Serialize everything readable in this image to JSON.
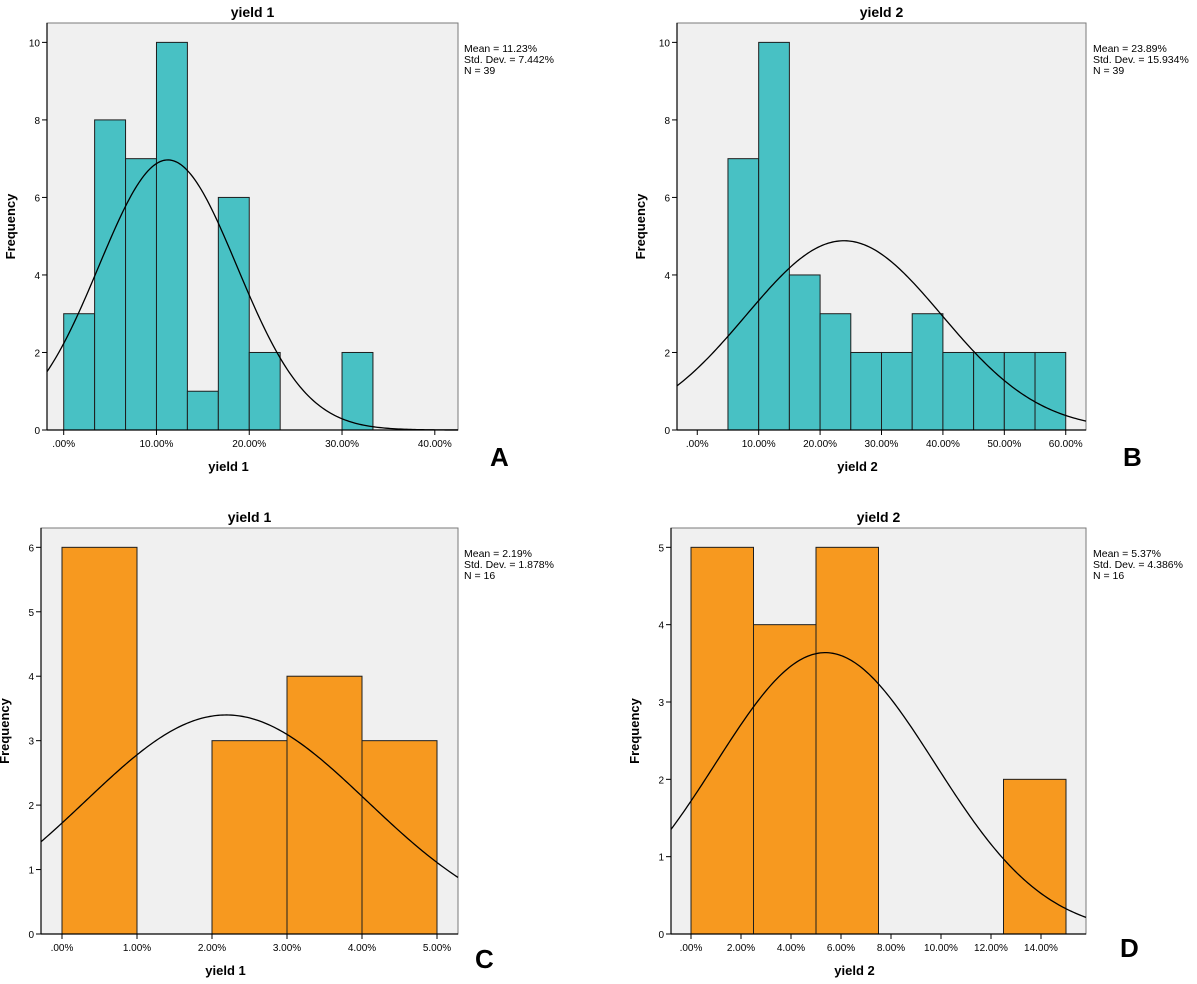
{
  "figure": {
    "description": "Four histograms with fitted normal curves"
  },
  "chart_data": [
    {
      "id": "A",
      "type": "bar",
      "subtype": "histogram",
      "panel_label": "A",
      "title": "yield 1",
      "xlabel": "yield 1",
      "ylabel": "Frequency",
      "bar_color": "#48C1C4",
      "background_color": "#F0F0F0",
      "xlim": [
        -1.8,
        42.5
      ],
      "ylim": [
        0,
        10.5
      ],
      "x_ticks": [
        0,
        10,
        20,
        30,
        40
      ],
      "x_tick_labels": [
        ".00%",
        "10.00%",
        "20.00%",
        "30.00%",
        "40.00%"
      ],
      "y_ticks": [
        0,
        2,
        4,
        6,
        8,
        10
      ],
      "y_tick_labels": [
        "0",
        "2",
        "4",
        "6",
        "8",
        "10"
      ],
      "bin_edges": [
        0,
        3.333,
        6.667,
        10,
        13.333,
        16.667,
        20,
        23.333,
        26.667,
        30,
        33.333
      ],
      "values": [
        3,
        8,
        7,
        10,
        1,
        6,
        2,
        0,
        0,
        2
      ],
      "normal_curve": {
        "mean": 11.23,
        "sd": 7.442,
        "n": 39,
        "bin_width": 3.333
      },
      "stats_lines": [
        "Mean = 11.23%",
        "Std. Dev. = 7.442%",
        "N = 39"
      ],
      "grid": false
    },
    {
      "id": "B",
      "type": "bar",
      "subtype": "histogram",
      "panel_label": "B",
      "title": "yield 2",
      "xlabel": "yield 2",
      "ylabel": "Frequency",
      "bar_color": "#48C1C4",
      "background_color": "#F0F0F0",
      "xlim": [
        -3.3,
        63.3
      ],
      "ylim": [
        0,
        10.5
      ],
      "x_ticks": [
        0,
        10,
        20,
        30,
        40,
        50,
        60
      ],
      "x_tick_labels": [
        ".00%",
        "10.00%",
        "20.00%",
        "30.00%",
        "40.00%",
        "50.00%",
        "60.00%"
      ],
      "y_ticks": [
        0,
        2,
        4,
        6,
        8,
        10
      ],
      "y_tick_labels": [
        "0",
        "2",
        "4",
        "6",
        "8",
        "10"
      ],
      "bin_edges": [
        5,
        10,
        15,
        20,
        25,
        30,
        35,
        40,
        45,
        50,
        55,
        60
      ],
      "values": [
        7,
        10,
        4,
        3,
        2,
        2,
        3,
        2,
        2,
        2,
        2
      ],
      "normal_curve": {
        "mean": 23.89,
        "sd": 15.934,
        "n": 39,
        "bin_width": 5
      },
      "stats_lines": [
        "Mean = 23.89%",
        "Std. Dev. = 15.934%",
        "N = 39"
      ],
      "grid": false
    },
    {
      "id": "C",
      "type": "bar",
      "subtype": "histogram",
      "panel_label": "C",
      "title": "yield 1",
      "xlabel": "yield 1",
      "ylabel": "Frequency",
      "bar_color": "#F7991F",
      "background_color": "#F0F0F0",
      "xlim": [
        -0.28,
        5.28
      ],
      "ylim": [
        0,
        6.3
      ],
      "x_ticks": [
        0,
        1,
        2,
        3,
        4,
        5
      ],
      "x_tick_labels": [
        ".00%",
        "1.00%",
        "2.00%",
        "3.00%",
        "4.00%",
        "5.00%"
      ],
      "y_ticks": [
        0,
        1,
        2,
        3,
        4,
        5,
        6
      ],
      "y_tick_labels": [
        "0",
        "1",
        "2",
        "3",
        "4",
        "5",
        "6"
      ],
      "bin_edges": [
        0,
        1,
        2,
        3,
        4,
        5
      ],
      "values": [
        6,
        0,
        3,
        4,
        3
      ],
      "normal_curve": {
        "mean": 2.19,
        "sd": 1.878,
        "n": 16,
        "bin_width": 1
      },
      "stats_lines": [
        "Mean = 2.19%",
        "Std. Dev. = 1.878%",
        "N = 16"
      ],
      "grid": false
    },
    {
      "id": "D",
      "type": "bar",
      "subtype": "histogram",
      "panel_label": "D",
      "title": "yield 2",
      "xlabel": "yield 2",
      "ylabel": "Frequency",
      "bar_color": "#F7991F",
      "background_color": "#F0F0F0",
      "xlim": [
        -0.8,
        15.8
      ],
      "ylim": [
        0,
        5.25
      ],
      "x_ticks": [
        0,
        2,
        4,
        6,
        8,
        10,
        12,
        14
      ],
      "x_tick_labels": [
        ".00%",
        "2.00%",
        "4.00%",
        "6.00%",
        "8.00%",
        "10.00%",
        "12.00%",
        "14.00%"
      ],
      "y_ticks": [
        0,
        1,
        2,
        3,
        4,
        5
      ],
      "y_tick_labels": [
        "0",
        "1",
        "2",
        "3",
        "4",
        "5"
      ],
      "bin_edges": [
        0,
        2.5,
        5,
        7.5,
        10,
        12.5,
        15
      ],
      "values": [
        5,
        4,
        5,
        0,
        0,
        2
      ],
      "normal_curve": {
        "mean": 5.37,
        "sd": 4.386,
        "n": 16,
        "bin_width": 2.5
      },
      "stats_lines": [
        "Mean = 5.37%",
        "Std. Dev. = 4.386%",
        "N = 16"
      ],
      "grid": false
    }
  ]
}
